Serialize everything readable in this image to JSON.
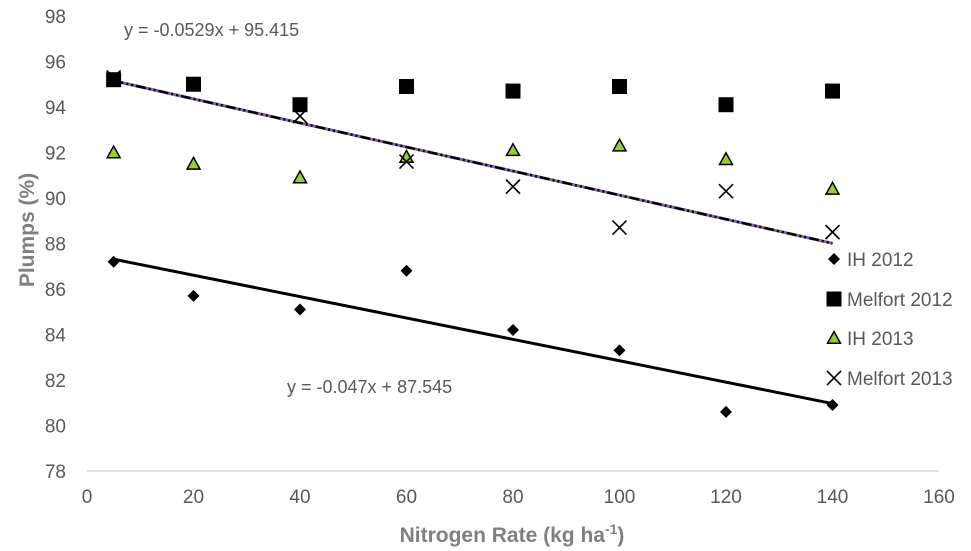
{
  "chart_data": {
    "type": "scatter",
    "title": "",
    "xlabel": "Nitrogen Rate (kg ha",
    "xlabel_superscript": "-1",
    "xlabel_suffix": ")",
    "ylabel": "Plumps (%)",
    "xlim": [
      0,
      160
    ],
    "ylim": [
      78,
      98
    ],
    "x_ticks": [
      0,
      20,
      40,
      60,
      80,
      100,
      120,
      140,
      160
    ],
    "y_ticks": [
      78,
      80,
      82,
      84,
      86,
      88,
      90,
      92,
      94,
      96,
      98
    ],
    "grid": false,
    "legend_position": "right",
    "series": [
      {
        "name": "IH 2012",
        "marker": "diamond",
        "color": "#000000",
        "x": [
          5,
          20,
          40,
          60,
          80,
          100,
          120,
          140
        ],
        "y": [
          87.2,
          85.7,
          85.1,
          86.8,
          84.2,
          83.3,
          80.6,
          80.9
        ]
      },
      {
        "name": "Melfort 2012",
        "marker": "square",
        "color": "#000000",
        "x": [
          5,
          20,
          40,
          60,
          80,
          100,
          120,
          140
        ],
        "y": [
          95.2,
          95.0,
          94.1,
          94.9,
          94.7,
          94.9,
          94.1,
          94.7
        ]
      },
      {
        "name": "IH 2013",
        "marker": "triangle",
        "color": "#000000",
        "fill": "#9acd32",
        "x": [
          5,
          20,
          40,
          60,
          80,
          100,
          120,
          140
        ],
        "y": [
          92.0,
          91.5,
          90.9,
          91.8,
          92.1,
          92.3,
          91.7,
          90.4
        ]
      },
      {
        "name": "Melfort 2013",
        "marker": "x",
        "color": "#000000",
        "x": [
          5,
          20,
          40,
          60,
          80,
          100,
          120,
          140
        ],
        "y": [
          95.3,
          95.0,
          93.6,
          91.6,
          90.5,
          88.7,
          90.3,
          88.5
        ]
      }
    ],
    "trendlines": [
      {
        "label": "y = -0.0529x + 95.415",
        "slope": -0.0529,
        "intercept": 95.415,
        "x_range": [
          5,
          140
        ],
        "style": "dash-dot",
        "colors": [
          "#8064a2",
          "#000000"
        ]
      },
      {
        "label": "y = -0.047x + 87.545",
        "slope": -0.047,
        "intercept": 87.545,
        "x_range": [
          5,
          140
        ],
        "style": "solid",
        "colors": [
          "#000000"
        ]
      }
    ]
  }
}
